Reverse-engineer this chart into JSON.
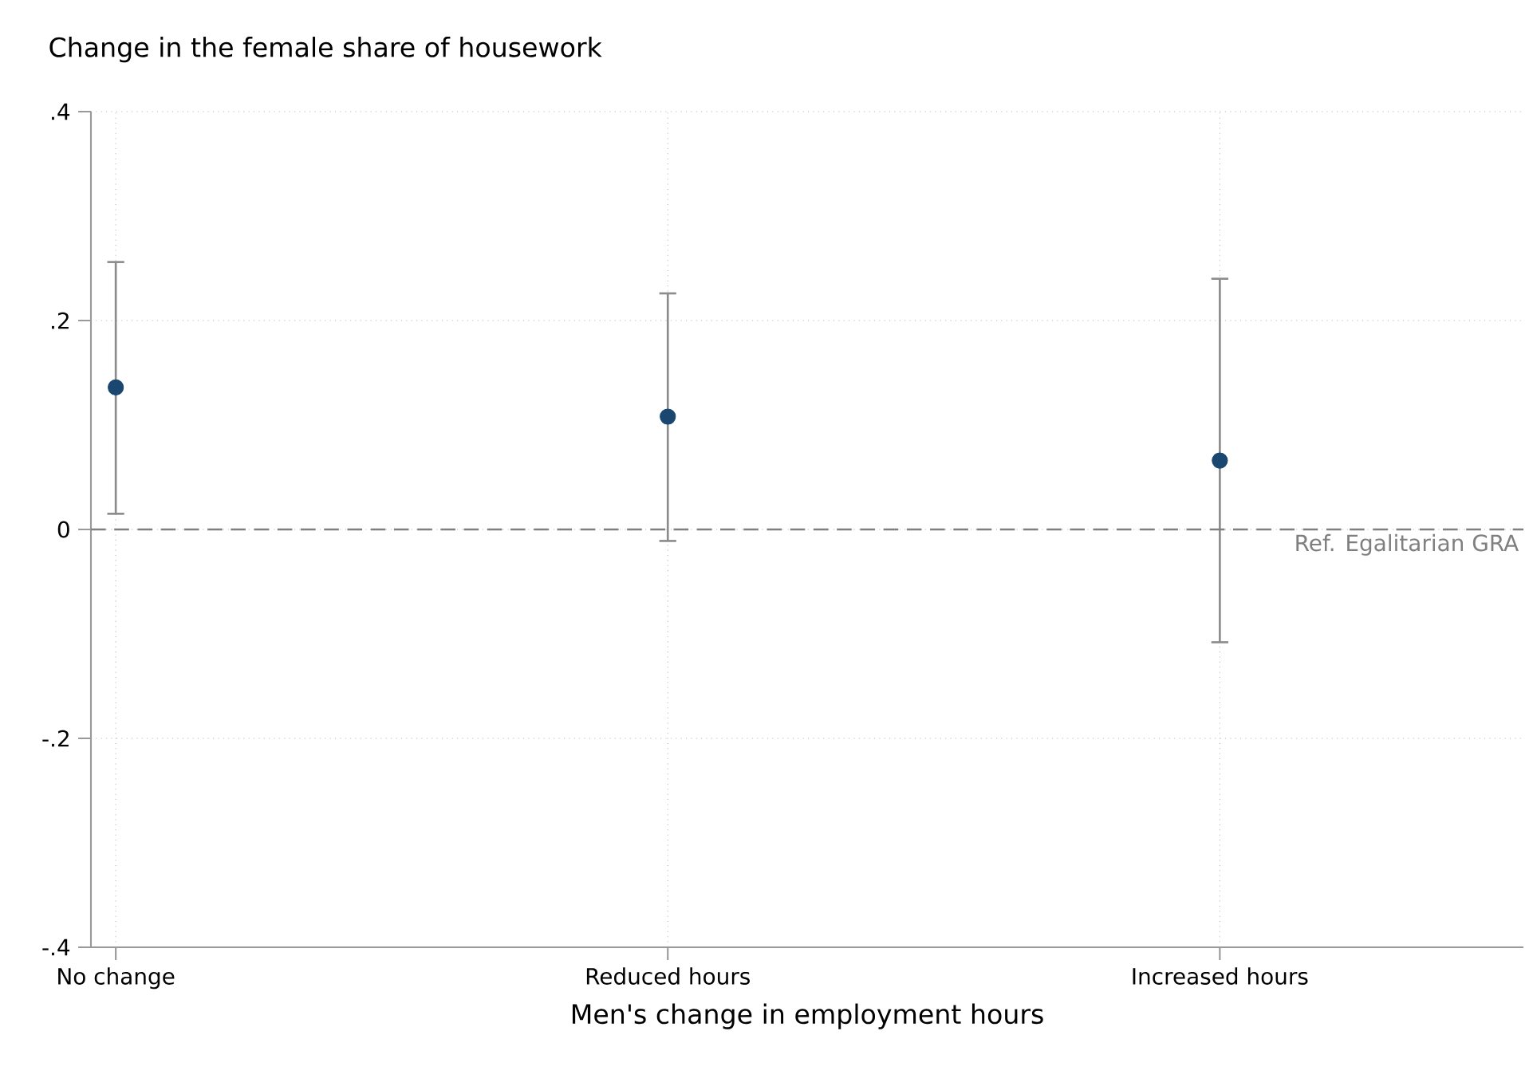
{
  "chart_data": {
    "type": "scatter",
    "ylabel": "Change in the female share of housework",
    "xlabel": "Men's change in employment hours",
    "categories": [
      "No change",
      "Reduced hours",
      "Increased hours"
    ],
    "series": [
      {
        "color": "#1a476f",
        "values": [
          0.136,
          0.108,
          0.066
        ],
        "errors": [
          [
            0.015,
            0.256
          ],
          [
            -0.011,
            0.226
          ],
          [
            -0.108,
            0.24
          ]
        ]
      }
    ],
    "ylim": [
      -0.4,
      0.4
    ],
    "yticks": [
      {
        "value": -0.4,
        "label": "-.4"
      },
      {
        "value": -0.2,
        "label": "-.2"
      },
      0,
      {
        "value": 0.2,
        "label": ".2"
      },
      {
        "value": 0.4,
        "label": ".4"
      }
    ],
    "ref_lines": [
      {
        "axis": "y",
        "value": 0,
        "label": "Ref. Egalitarian GRA",
        "color": "#7f7f7f",
        "line_style": "dashed"
      }
    ],
    "grid": true,
    "marker": "circle"
  }
}
